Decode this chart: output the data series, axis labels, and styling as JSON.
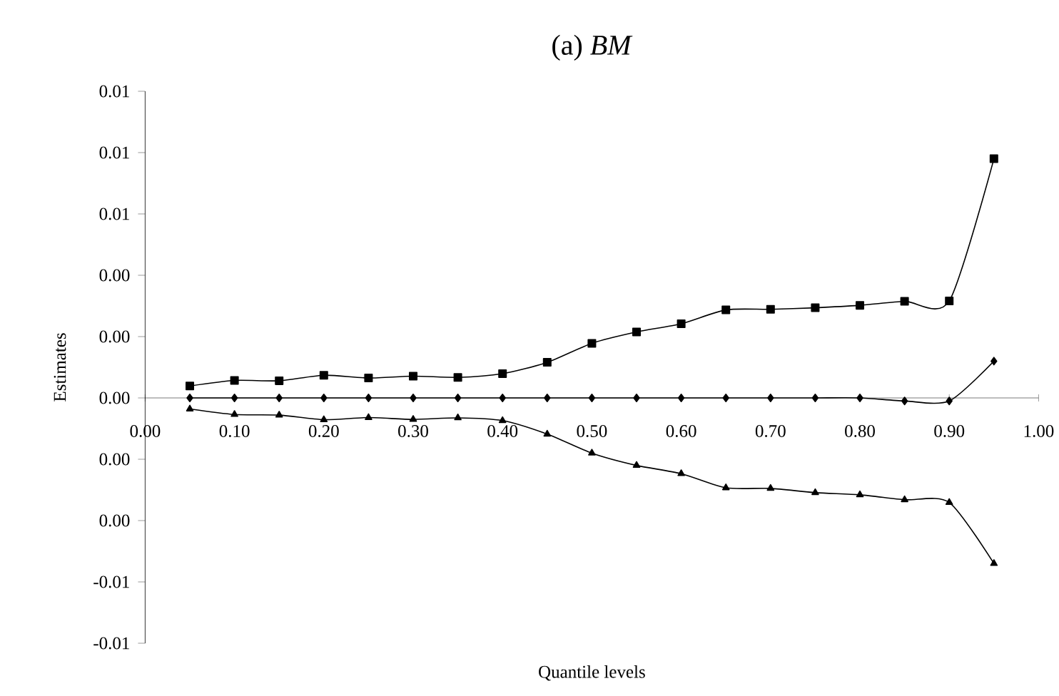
{
  "chart_data": {
    "type": "line",
    "title": "(a) *BM*",
    "xlabel": "Quantile levels",
    "ylabel": "Estimates",
    "x": [
      0.05,
      0.1,
      0.15,
      0.2,
      0.25,
      0.3,
      0.35,
      0.4,
      0.45,
      0.5,
      0.55,
      0.6,
      0.65,
      0.7,
      0.75,
      0.8,
      0.85,
      0.9,
      0.95
    ],
    "series": [
      {
        "color": "#000000",
        "marker": "square",
        "values": [
          0.00039,
          0.00057,
          0.00056,
          0.00074,
          0.00065,
          0.00071,
          0.00067,
          0.00079,
          0.00116,
          0.00178,
          0.00215,
          0.00242,
          0.00287,
          0.00289,
          0.00294,
          0.00302,
          0.00315,
          0.00316,
          0.0078
        ]
      },
      {
        "color": "#000000",
        "marker": "diamond",
        "values": [
          0.0,
          0.0,
          0.0,
          0.0,
          0.0,
          0.0,
          0.0,
          0.0,
          0.0,
          0.0,
          0.0,
          0.0,
          0.0,
          0.0,
          0.0,
          0.0,
          -0.0001,
          -0.0001,
          0.0012
        ]
      },
      {
        "color": "#000000",
        "marker": "triangle",
        "values": [
          -0.00036,
          -0.00054,
          -0.00056,
          -0.00071,
          -0.00064,
          -0.0007,
          -0.00065,
          -0.00074,
          -0.00118,
          -0.0018,
          -0.0022,
          -0.00247,
          -0.00293,
          -0.00295,
          -0.00309,
          -0.00316,
          -0.00332,
          -0.00341,
          -0.0054
        ]
      }
    ],
    "xlim": [
      0,
      1
    ],
    "ylim": [
      -0.008,
      0.01
    ],
    "xticks": [
      {
        "value": 0,
        "label": "0.00"
      },
      {
        "value": 0.1,
        "label": "0.10"
      },
      {
        "value": 0.2,
        "label": "0.20"
      },
      {
        "value": 0.3,
        "label": "0.30"
      },
      {
        "value": 0.4,
        "label": "0.40"
      },
      {
        "value": 0.5,
        "label": "0.50"
      },
      {
        "value": 0.6,
        "label": "0.60"
      },
      {
        "value": 0.7,
        "label": "0.70"
      },
      {
        "value": 0.8,
        "label": "0.80"
      },
      {
        "value": 0.9,
        "label": "0.90"
      },
      {
        "value": 1,
        "label": "1.00"
      }
    ],
    "yticks": [
      {
        "value": -0.008,
        "label": "-0.01"
      },
      {
        "value": -0.006,
        "label": "-0.01"
      },
      {
        "value": -0.004,
        "label": "0.00"
      },
      {
        "value": -0.002,
        "label": "0.00"
      },
      {
        "value": 0,
        "label": "0.00"
      },
      {
        "value": 0.002,
        "label": "0.00"
      },
      {
        "value": 0.004,
        "label": "0.00"
      },
      {
        "value": 0.006,
        "label": "0.01"
      },
      {
        "value": 0.008,
        "label": "0.01"
      },
      {
        "value": 0.01,
        "label": "0.01"
      }
    ],
    "grid": false
  }
}
